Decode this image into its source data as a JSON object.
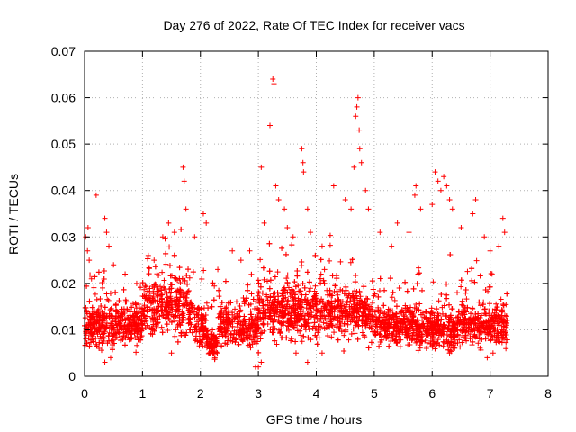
{
  "chart_data": {
    "type": "scatter",
    "title": "Day 276 of 2022, Rate Of TEC Index for receiver vacs",
    "xlabel": "GPS time / hours",
    "ylabel": "ROTI / TECUs",
    "xlim": [
      0,
      8
    ],
    "ylim": [
      0,
      0.07
    ],
    "x_ticks": [
      "0",
      "1",
      "2",
      "3",
      "4",
      "5",
      "6",
      "7",
      "8"
    ],
    "y_ticks": [
      "0",
      "0.01",
      "0.02",
      "0.03",
      "0.04",
      "0.05",
      "0.06",
      "0.07"
    ],
    "grid": true,
    "marker": "+",
    "marker_color": "#ff0000",
    "x_data_range": [
      0,
      7.3
    ],
    "series": [
      {
        "name": "",
        "points": [
          [
            0.02,
            0.03
          ],
          [
            0.05,
            0.027
          ],
          [
            0.06,
            0.032
          ],
          [
            0.08,
            0.025
          ],
          [
            0.12,
            0.021
          ],
          [
            0.2,
            0.039
          ],
          [
            0.35,
            0.034
          ],
          [
            0.38,
            0.031
          ],
          [
            0.42,
            0.028
          ],
          [
            0.5,
            0.024
          ],
          [
            0.7,
            0.022
          ],
          [
            0.9,
            0.02
          ],
          [
            1.1,
            0.026
          ],
          [
            1.2,
            0.025
          ],
          [
            1.35,
            0.03
          ],
          [
            1.45,
            0.033
          ],
          [
            1.55,
            0.031
          ],
          [
            1.7,
            0.045
          ],
          [
            1.72,
            0.042
          ],
          [
            1.75,
            0.036
          ],
          [
            1.9,
            0.03
          ],
          [
            2.05,
            0.035
          ],
          [
            2.1,
            0.033
          ],
          [
            2.3,
            0.023
          ],
          [
            2.55,
            0.027
          ],
          [
            2.7,
            0.025
          ],
          [
            2.85,
            0.027
          ],
          [
            3.05,
            0.045
          ],
          [
            3.1,
            0.033
          ],
          [
            3.2,
            0.054
          ],
          [
            3.25,
            0.064
          ],
          [
            3.27,
            0.063
          ],
          [
            3.3,
            0.041
          ],
          [
            3.35,
            0.038
          ],
          [
            3.45,
            0.036
          ],
          [
            3.5,
            0.032
          ],
          [
            3.6,
            0.03
          ],
          [
            3.75,
            0.049
          ],
          [
            3.77,
            0.046
          ],
          [
            3.78,
            0.044
          ],
          [
            3.85,
            0.036
          ],
          [
            3.9,
            0.031
          ],
          [
            4.1,
            0.028
          ],
          [
            4.3,
            0.041
          ],
          [
            4.5,
            0.038
          ],
          [
            4.6,
            0.036
          ],
          [
            4.65,
            0.045
          ],
          [
            4.68,
            0.056
          ],
          [
            4.7,
            0.058
          ],
          [
            4.72,
            0.06
          ],
          [
            4.74,
            0.053
          ],
          [
            4.75,
            0.049
          ],
          [
            4.78,
            0.046
          ],
          [
            4.85,
            0.04
          ],
          [
            4.9,
            0.036
          ],
          [
            5.1,
            0.031
          ],
          [
            5.3,
            0.028
          ],
          [
            5.4,
            0.033
          ],
          [
            5.6,
            0.031
          ],
          [
            5.7,
            0.039
          ],
          [
            5.72,
            0.041
          ],
          [
            5.8,
            0.036
          ],
          [
            6.0,
            0.037
          ],
          [
            6.05,
            0.044
          ],
          [
            6.1,
            0.042
          ],
          [
            6.15,
            0.04
          ],
          [
            6.2,
            0.043
          ],
          [
            6.25,
            0.041
          ],
          [
            6.3,
            0.038
          ],
          [
            6.35,
            0.036
          ],
          [
            6.5,
            0.032
          ],
          [
            6.7,
            0.035
          ],
          [
            6.75,
            0.038
          ],
          [
            6.9,
            0.03
          ],
          [
            7.0,
            0.027
          ],
          [
            7.15,
            0.028
          ],
          [
            7.22,
            0.034
          ],
          [
            7.25,
            0.031
          ],
          [
            2.95,
            0.002
          ],
          [
            3.0,
            0.002
          ],
          [
            3.05,
            0.003
          ],
          [
            3.85,
            0.003
          ],
          [
            0.35,
            0.003
          ],
          [
            0.45,
            0.004
          ],
          [
            1.5,
            0.005
          ],
          [
            2.25,
            0.004
          ],
          [
            5.9,
            0.006
          ],
          [
            6.3,
            0.005
          ],
          [
            6.95,
            0.004
          ],
          [
            7.05,
            0.005
          ],
          [
            0.25,
            0.006
          ],
          [
            3.65,
            0.005
          ],
          [
            4.1,
            0.005
          ]
        ]
      }
    ]
  }
}
